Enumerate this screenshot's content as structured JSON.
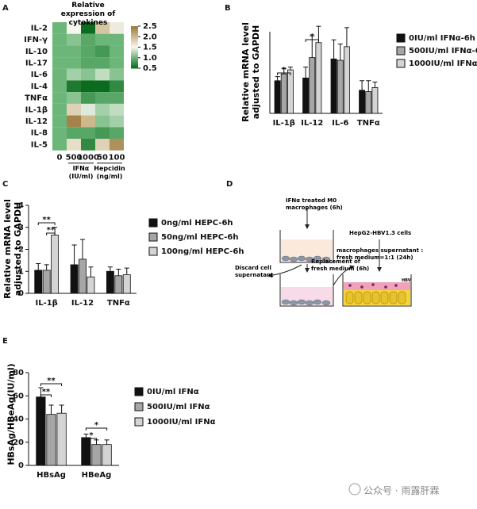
{
  "chart_data": [
    {
      "panel": "A",
      "type": "heatmap",
      "title": "Relative expression of cytokines",
      "rows": [
        "IL-2",
        "IFN-γ",
        "IL-10",
        "IL-17",
        "IL-6",
        "IL-4",
        "TNFα",
        "IL-1β",
        "IL-12",
        "IL-8",
        "IL-5"
      ],
      "columns": [
        "0",
        "500",
        "1000",
        "50",
        "100"
      ],
      "groups": [
        "IFNα (IU/ml)",
        "Hepcidin (ng/ml)"
      ],
      "values": [
        [
          1.0,
          1.5,
          0.5,
          1.9,
          1.6
        ],
        [
          1.0,
          1.1,
          0.9,
          1.0,
          1.0
        ],
        [
          1.0,
          1.0,
          0.9,
          0.8,
          1.0
        ],
        [
          1.0,
          1.0,
          0.9,
          0.9,
          1.0
        ],
        [
          1.0,
          1.2,
          1.1,
          1.3,
          1.1
        ],
        [
          1.0,
          0.6,
          0.5,
          0.5,
          0.7
        ],
        [
          1.0,
          1.1,
          0.8,
          0.9,
          0.9
        ],
        [
          1.0,
          1.8,
          1.4,
          1.2,
          1.3
        ],
        [
          1.0,
          2.4,
          2.0,
          1.1,
          1.2
        ],
        [
          1.0,
          0.9,
          0.9,
          0.8,
          0.9
        ],
        [
          1.0,
          1.7,
          0.7,
          1.8,
          2.3
        ]
      ],
      "zlim": [
        0.5,
        2.5
      ],
      "zticks": [
        0.5,
        {
          "value": 1,
          "label": "1.0"
        },
        1.5,
        {
          "value": 2,
          "label": "2.0"
        },
        2.5
      ],
      "colormap": [
        "#0b6b1e",
        "#6db679",
        "#f7f7f2",
        "#cdb88c",
        "#9a763a"
      ]
    },
    {
      "panel": "B",
      "type": "bar",
      "ylabel": "Relative  mRNA level adjusted to GAPDH",
      "categories": [
        "IL-1β",
        "IL-12",
        "IL-6",
        "TNFα"
      ],
      "series": [
        {
          "name": "0IU/ml IFNα-6h",
          "color": "#111111",
          "values": [
            1.2,
            1.3,
            2.0,
            0.85
          ],
          "errors": [
            0.15,
            0.4,
            0.7,
            0.35
          ]
        },
        {
          "name": "500IU/ml IFNα-6h",
          "color": "#a6a6a6",
          "values": [
            1.45,
            2.05,
            1.95,
            0.8
          ],
          "errors": [
            0.2,
            0.8,
            0.6,
            0.4
          ]
        },
        {
          "name": "1000IU/ml IFNα-6h",
          "color": "#d4d4d4",
          "values": [
            1.6,
            2.6,
            2.45,
            0.95
          ],
          "errors": [
            0.1,
            0.6,
            0.7,
            0.2
          ]
        }
      ],
      "ylim": [
        0,
        3
      ],
      "annotations": [
        "*",
        "*"
      ]
    },
    {
      "panel": "C",
      "type": "bar",
      "ylabel": "Relative  mRNA level adjusted to GAPDH",
      "categories": [
        "IL-1β",
        "IL-12",
        "TNFα"
      ],
      "series": [
        {
          "name": "0ng/ml HEPC-6h",
          "color": "#111111",
          "values": [
            1.05,
            1.3,
            1.0
          ],
          "errors": [
            0.3,
            0.9,
            0.2
          ]
        },
        {
          "name": "50ng/ml HEPC-6h",
          "color": "#a6a6a6",
          "values": [
            1.05,
            1.55,
            0.8
          ],
          "errors": [
            0.25,
            0.9,
            0.3
          ]
        },
        {
          "name": "100ng/ml HEPC-6h",
          "color": "#d4d4d4",
          "values": [
            2.65,
            0.75,
            0.85
          ],
          "errors": [
            0.35,
            0.45,
            0.3
          ]
        }
      ],
      "ylim": [
        0,
        4
      ],
      "yticks": [
        0,
        1,
        2,
        3,
        4
      ],
      "annotations": [
        "**",
        "**"
      ]
    },
    {
      "panel": "E",
      "type": "bar",
      "ylabel": "HBsAg/HBeAg(IU/ml)",
      "categories": [
        "HBsAg",
        "HBeAg"
      ],
      "series": [
        {
          "name": "0IU/ml IFNα",
          "color": "#111111",
          "values": [
            59,
            24
          ],
          "errors": [
            8,
            3
          ]
        },
        {
          "name": "500IU/ml IFNα",
          "color": "#a6a6a6",
          "values": [
            44,
            18
          ],
          "errors": [
            8,
            4
          ]
        },
        {
          "name": "1000IU/ml IFNα",
          "color": "#d4d4d4",
          "values": [
            45,
            18
          ],
          "errors": [
            7,
            4
          ]
        }
      ],
      "ylim": [
        0,
        80
      ],
      "yticks": [
        0,
        20,
        40,
        60,
        80
      ],
      "annotations": [
        "**",
        "**",
        "*",
        "*"
      ]
    }
  ],
  "diagram": {
    "panel": "D",
    "labels": [
      "IFNα treated M0 macrophages (6h)",
      "HepG2-HBV1.3 cells",
      "Discard cell supernatant",
      "Replacement of fresh medium (6h)",
      "macrophages supernatant : fresh medium=1:1  (24h)",
      "HBV"
    ]
  },
  "watermark": "公众号 · 雨露肝霖"
}
